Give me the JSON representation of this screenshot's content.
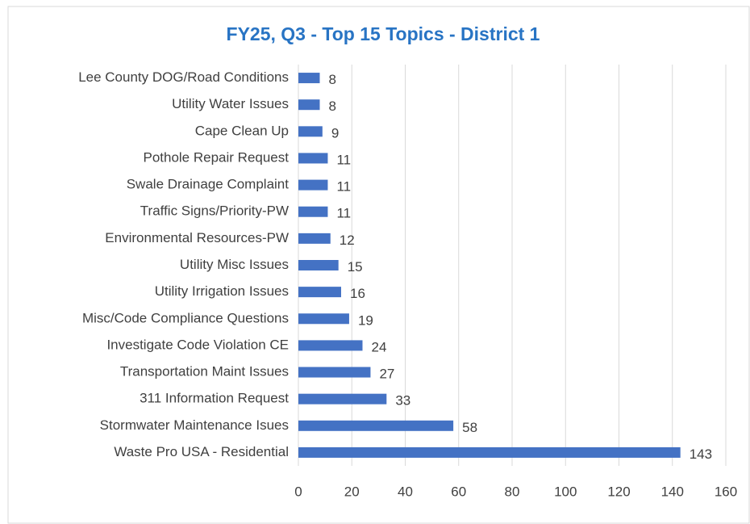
{
  "chart_data": {
    "type": "barh",
    "title": "FY25, Q3 - Top 15 Topics - District 1",
    "categories": [
      "Lee County DOG/Road Conditions",
      "Utility Water Issues",
      "Cape Clean Up",
      "Pothole Repair Request",
      "Swale Drainage Complaint",
      "Traffic Signs/Priority-PW",
      "Environmental Resources-PW",
      "Utility Misc Issues",
      "Utility Irrigation Issues",
      "Misc/Code Compliance Questions",
      "Investigate Code Violation CE",
      "Transportation Maint Issues",
      "311 Information Request",
      "Stormwater Maintenance Isues",
      "Waste Pro USA - Residential"
    ],
    "values": [
      8,
      8,
      9,
      11,
      11,
      11,
      12,
      15,
      16,
      19,
      24,
      27,
      33,
      58,
      143
    ],
    "color": "#4472c4",
    "xlim": [
      0,
      160
    ],
    "xticks": [
      0,
      20,
      40,
      60,
      80,
      100,
      120,
      140,
      160
    ],
    "grid": true
  }
}
